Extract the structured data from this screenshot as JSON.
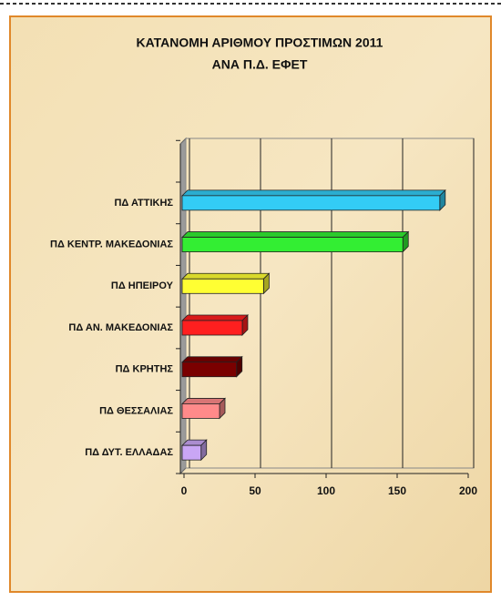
{
  "chart_data": {
    "type": "bar3d_horizontal",
    "title_lines": [
      "ΚΑΤΑΝΟΜΗ ΑΡΙΘΜΟΥ ΠΡΟΣΤΙΜΩΝ 2011",
      "ΑΝΑ Π.Δ. ΕΦΕΤ"
    ],
    "categories": [
      "ΠΔ ΑΤΤΙΚΗΣ",
      "ΠΔ ΚΕΝΤΡ. ΜΑΚΕΔΟΝΙΑΣ",
      "ΠΔ ΗΠΕΙΡΟΥ",
      "ΠΔ ΑΝ. ΜΑΚΕΔΟΝΙΑΣ",
      "ΠΔ ΚΡΗΤΗΣ",
      "ΠΔ ΘΕΣΣΑΛΙΑΣ",
      "ΠΔ ΔΥΤ. ΕΛΛΑΔΑΣ"
    ],
    "values": [
      180,
      154,
      56,
      41,
      37,
      25,
      12
    ],
    "colors": [
      "#33ccf5",
      "#33ee33",
      "#ffff33",
      "#ff1f1f",
      "#7a0000",
      "#ff8a8a",
      "#c9a6f5"
    ],
    "xlim": [
      0,
      200
    ],
    "xticks": [
      0,
      50,
      100,
      150,
      200
    ],
    "grid": true
  }
}
